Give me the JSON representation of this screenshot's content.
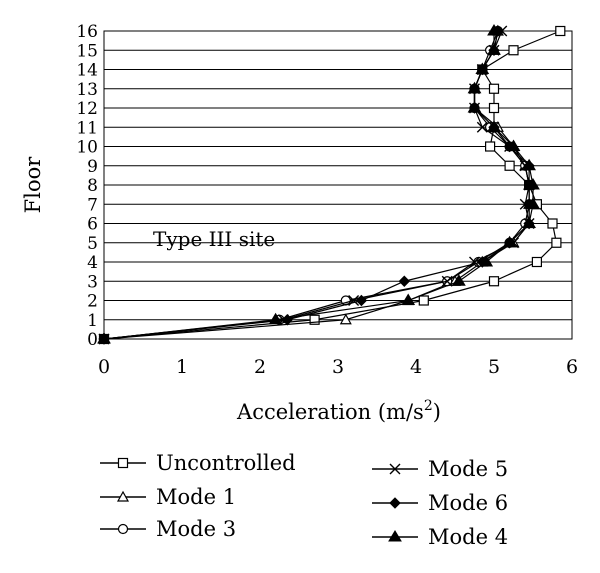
{
  "chart_data": {
    "type": "line",
    "orientation": "horizontal-profile",
    "xlabel": "Acceleration (m/s",
    "xlabel_sup": "2",
    "xlabel_end": ")",
    "ylabel": "Floor",
    "xlim": [
      0,
      6
    ],
    "ylim": [
      0,
      16
    ],
    "x_ticks": [
      "0",
      "1",
      "2",
      "3",
      "4",
      "5",
      "6"
    ],
    "y_ticks": [
      "0",
      "1",
      "2",
      "3",
      "4",
      "5",
      "6",
      "7",
      "8",
      "9",
      "10",
      "11",
      "12",
      "13",
      "14",
      "15",
      "16"
    ],
    "grid": "horizontal",
    "annotation": "Type III site",
    "legend_placement": "below",
    "floors": [
      0,
      1,
      2,
      3,
      4,
      5,
      6,
      7,
      8,
      9,
      10,
      11,
      12,
      13,
      14,
      15,
      16
    ],
    "series": [
      {
        "name": "Uncontrolled",
        "marker": "square-open",
        "values": [
          0,
          2.7,
          4.1,
          5.0,
          5.55,
          5.8,
          5.75,
          5.55,
          5.45,
          5.2,
          4.95,
          5.0,
          5.0,
          5.0,
          4.85,
          5.25,
          5.85
        ]
      },
      {
        "name": "Mode 1",
        "marker": "triangle-open",
        "values": [
          0,
          3.1,
          3.9,
          4.5,
          4.85,
          5.25,
          5.45,
          5.45,
          5.45,
          5.4,
          5.25,
          5.05,
          4.75,
          4.75,
          4.85,
          5.0,
          5.05
        ]
      },
      {
        "name": "Mode 3",
        "marker": "circle-open",
        "values": [
          0,
          2.25,
          3.1,
          4.4,
          4.8,
          5.2,
          5.4,
          5.45,
          5.45,
          5.4,
          5.2,
          4.95,
          4.75,
          4.75,
          4.85,
          4.95,
          5.05
        ]
      },
      {
        "name": "Mode 5",
        "marker": "x",
        "values": [
          0,
          2.3,
          3.2,
          4.4,
          4.75,
          5.25,
          5.45,
          5.4,
          5.45,
          5.4,
          5.2,
          4.85,
          4.75,
          4.75,
          4.85,
          5.0,
          5.1
        ]
      },
      {
        "name": "Mode 6",
        "marker": "diamond-filled",
        "values": [
          0,
          2.35,
          3.3,
          3.85,
          4.85,
          5.2,
          5.45,
          5.45,
          5.45,
          5.45,
          5.2,
          5.0,
          4.75,
          4.75,
          4.85,
          5.0,
          5.05
        ]
      },
      {
        "name": "Mode 4",
        "marker": "triangle-filled",
        "values": [
          0,
          2.2,
          3.9,
          4.55,
          4.9,
          5.2,
          5.45,
          5.5,
          5.5,
          5.45,
          5.25,
          5.0,
          4.75,
          4.75,
          4.85,
          5.0,
          5.0
        ]
      }
    ]
  }
}
